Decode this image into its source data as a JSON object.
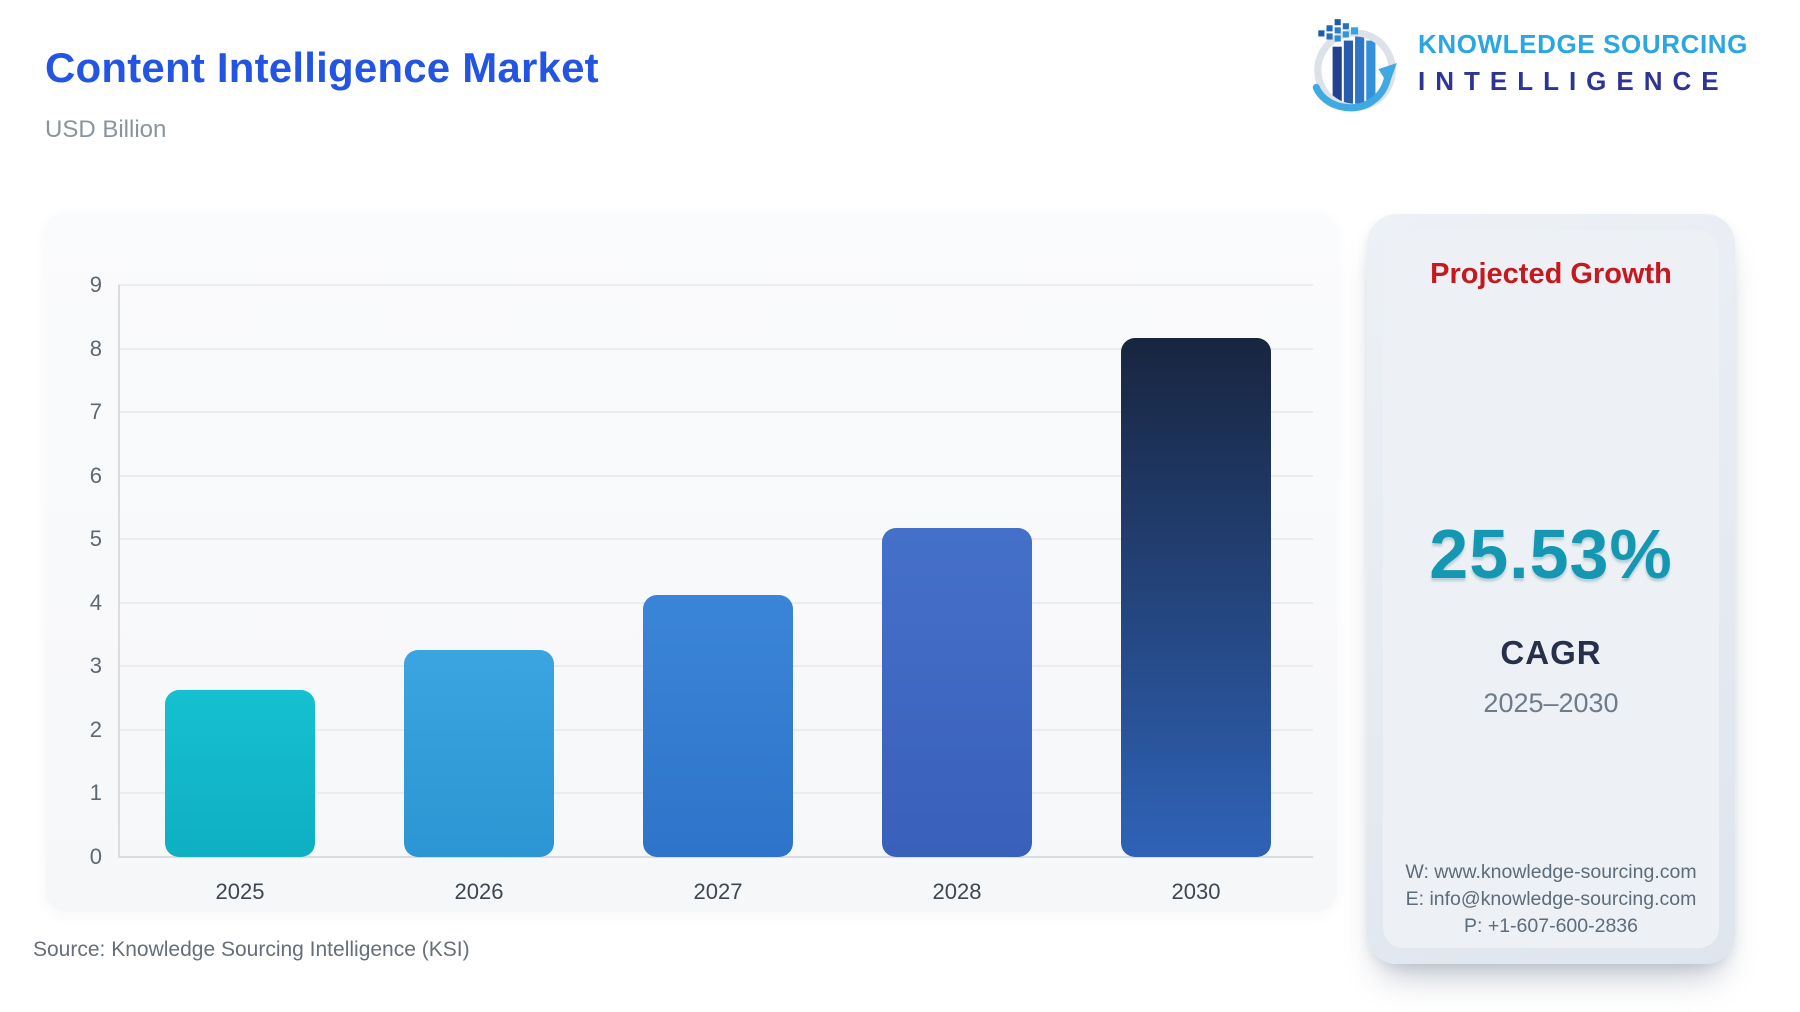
{
  "header": {
    "title": "Content Intelligence Market",
    "subtitle": "USD Billion"
  },
  "logo": {
    "line1": "KNOWLEDGE SOURCING",
    "line2": "INTELLIGENCE"
  },
  "chart_data": {
    "type": "bar",
    "title": "Content Intelligence Market",
    "ylabel": "USD Billion",
    "categories": [
      "2025",
      "2026",
      "2027",
      "2028",
      "2030"
    ],
    "values": [
      2.62,
      3.26,
      4.12,
      5.17,
      8.17
    ],
    "ylim": [
      0,
      9
    ],
    "yticks": [
      0,
      1,
      2,
      3,
      4,
      5,
      6,
      7,
      8,
      9
    ],
    "grid": "horizontal",
    "legend": "none",
    "bar_gradients": [
      [
        "#16c0d0",
        "#0eafc2"
      ],
      [
        "#3aa5e0",
        "#2c95d3"
      ],
      [
        "#3b85d8",
        "#2e74ca"
      ],
      [
        "#4570c9",
        "#3960ba"
      ],
      [
        "#18253f",
        "#2f63b8"
      ]
    ]
  },
  "panel": {
    "title": "Projected Growth",
    "cagr_value": "25.53%",
    "cagr_label": "CAGR",
    "period": "2025–2030",
    "contact": {
      "website": "W: www.knowledge-sourcing.com",
      "email": "E: info@knowledge-sourcing.com",
      "phone": "P: +1-607-600-2836"
    }
  },
  "footer": {
    "source": "Source: Knowledge Sourcing Intelligence (KSI)"
  },
  "colors": {
    "title_blue": "#2355e2",
    "panel_title_red": "#c4191f",
    "cagr_teal": "#1697b1",
    "logo_light_blue": "#2aa7e0",
    "logo_navy": "#2e3494"
  }
}
